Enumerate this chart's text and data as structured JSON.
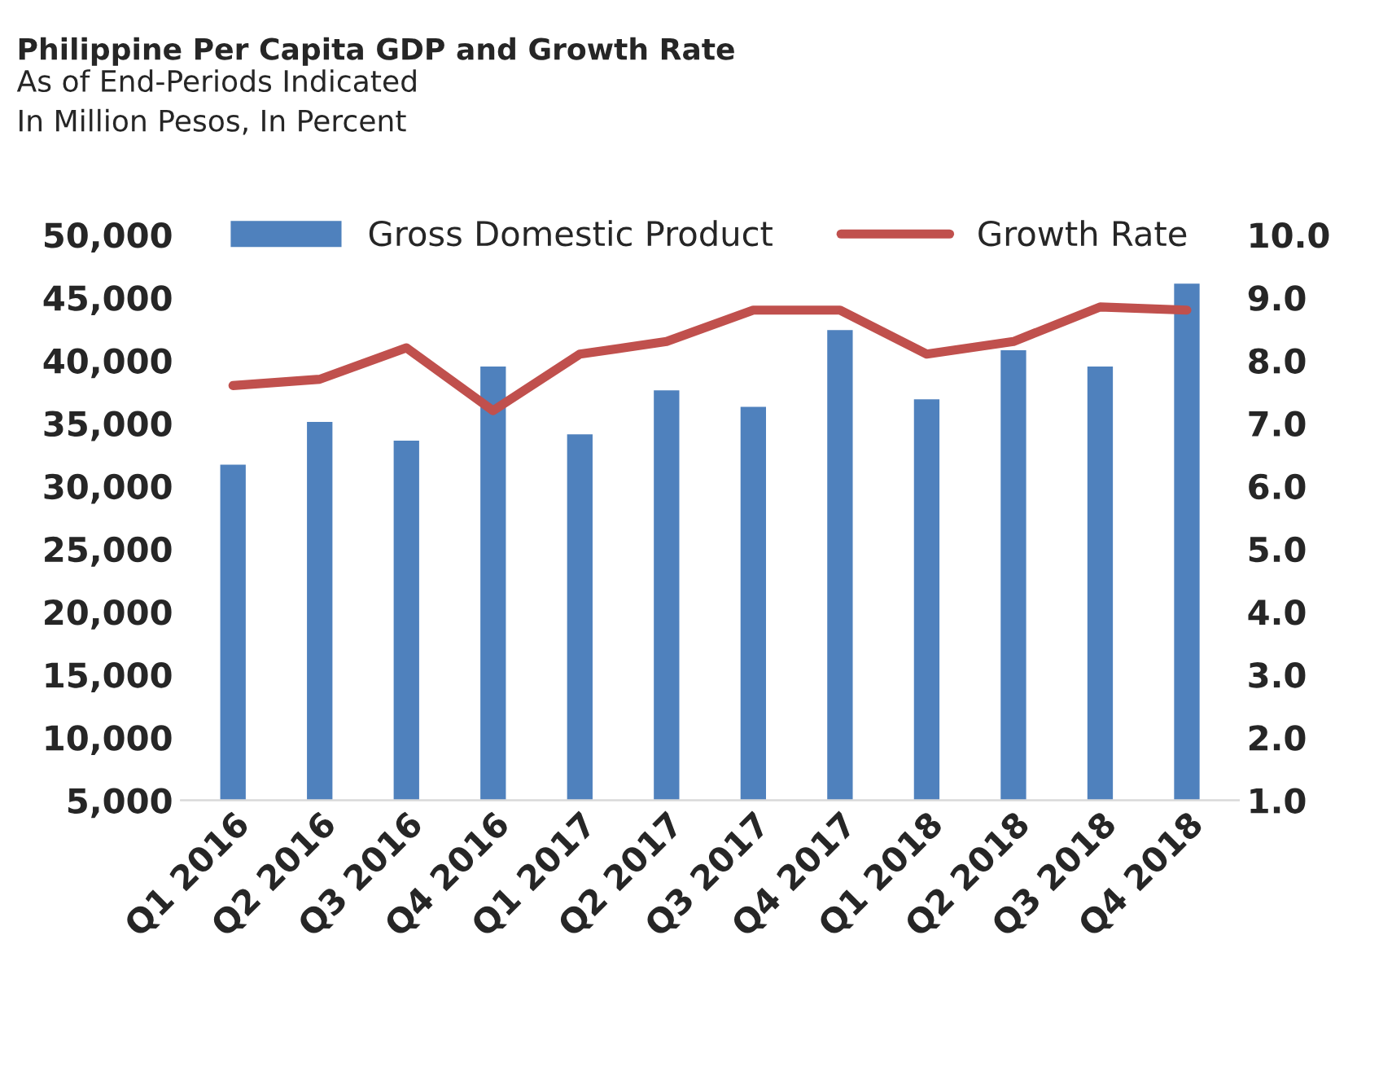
{
  "chart_data": {
    "type": "bar",
    "title": "Philippine Per Capita GDP and Growth Rate",
    "subtitle": "As of End-Periods Indicated\nIn Million Pesos, In Percent",
    "categories": [
      "Q1 2016",
      "Q2 2016",
      "Q3 2016",
      "Q4 2016",
      "Q1 2017",
      "Q2 2017",
      "Q3 2017",
      "Q4 2017",
      "Q1 2018",
      "Q2 2018",
      "Q3 2018",
      "Q4 2018"
    ],
    "series": [
      {
        "name": "Gross Domestic Product",
        "color": "#4f81bd",
        "values": [
          31800,
          35200,
          33700,
          39600,
          34200,
          37700,
          36400,
          42500,
          37000,
          40900,
          39600,
          46200
        ]
      },
      {
        "name": "Growth Rate",
        "type": "line",
        "axis": "y2",
        "color": "#c0504d",
        "values": [
          7.6,
          7.7,
          8.2,
          7.2,
          8.1,
          8.3,
          8.8,
          8.8,
          8.1,
          8.3,
          8.85,
          8.8
        ]
      }
    ],
    "ylim": [
      5000,
      50000
    ],
    "yticks": [
      {
        "value": 5000,
        "label": "5,000"
      },
      {
        "value": 10000,
        "label": "10,000"
      },
      {
        "value": 15000,
        "label": "15,000"
      },
      {
        "value": 20000,
        "label": "20,000"
      },
      {
        "value": 25000,
        "label": "25,000"
      },
      {
        "value": 30000,
        "label": "30,000"
      },
      {
        "value": 35000,
        "label": "35,000"
      },
      {
        "value": 40000,
        "label": "40,000"
      },
      {
        "value": 45000,
        "label": "45,000"
      },
      {
        "value": 50000,
        "label": "50,000"
      }
    ],
    "y2lim": [
      1,
      10
    ],
    "y2ticks": [
      {
        "value": 1,
        "label": "1.0"
      },
      {
        "value": 2,
        "label": "2.0"
      },
      {
        "value": 3,
        "label": "3.0"
      },
      {
        "value": 4,
        "label": "4.0"
      },
      {
        "value": 5,
        "label": "5.0"
      },
      {
        "value": 6,
        "label": "6.0"
      },
      {
        "value": 7,
        "label": "7.0"
      },
      {
        "value": 8,
        "label": "8.0"
      },
      {
        "value": 9,
        "label": "9.0"
      },
      {
        "value": 10,
        "label": "10.0"
      }
    ],
    "legend": "top",
    "grid": false,
    "marker": "none",
    "line_style": "solid"
  }
}
